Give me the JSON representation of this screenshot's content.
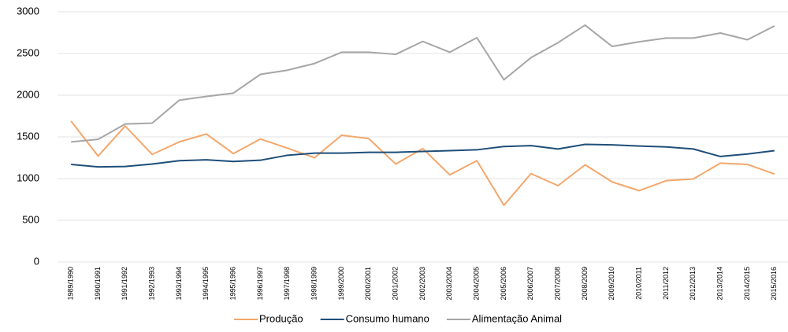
{
  "chart_data": {
    "type": "line",
    "categories": [
      "1989/1990",
      "1990/1991",
      "1991/1992",
      "1992/1993",
      "1993/1994",
      "1994/1995",
      "1995/1996",
      "1996/1997",
      "1997/1998",
      "1998/1999",
      "1999/2000",
      "2000/2001",
      "2001/2002",
      "2002/2003",
      "2003/2004",
      "2004/2005",
      "2005/2006",
      "2006/2007",
      "2007/2008",
      "2008/2009",
      "2009/2010",
      "2010/2011",
      "2011/2012",
      "2012/2013",
      "2013/2014",
      "2014/2015",
      "2015/2016"
    ],
    "series": [
      {
        "name": "Produção",
        "color": "#f4a76b",
        "values": [
          1690,
          1270,
          1630,
          1290,
          1440,
          1535,
          1300,
          1475,
          1365,
          1250,
          1520,
          1480,
          1175,
          1360,
          1045,
          1215,
          680,
          1060,
          915,
          1165,
          960,
          855,
          975,
          995,
          1185,
          1170,
          1055
        ]
      },
      {
        "name": "Consumo humano",
        "color": "#1f4e79",
        "values": [
          1170,
          1140,
          1145,
          1175,
          1215,
          1225,
          1205,
          1220,
          1280,
          1305,
          1305,
          1315,
          1315,
          1325,
          1335,
          1345,
          1385,
          1395,
          1355,
          1410,
          1405,
          1390,
          1380,
          1355,
          1265,
          1295,
          1335
        ]
      },
      {
        "name": "Alimentação Animal",
        "color": "#a6a6a6",
        "values": [
          1440,
          1470,
          1655,
          1665,
          1940,
          1985,
          2025,
          2250,
          2300,
          2380,
          2515,
          2515,
          2490,
          2645,
          2515,
          2690,
          2185,
          2450,
          2630,
          2840,
          2585,
          2640,
          2685,
          2685,
          2745,
          2665,
          2830
        ]
      }
    ],
    "ylim": [
      0,
      3000
    ],
    "yticks": [
      0,
      500,
      1000,
      1500,
      2000,
      2500,
      3000
    ],
    "grid": true,
    "legend": "bottom"
  }
}
